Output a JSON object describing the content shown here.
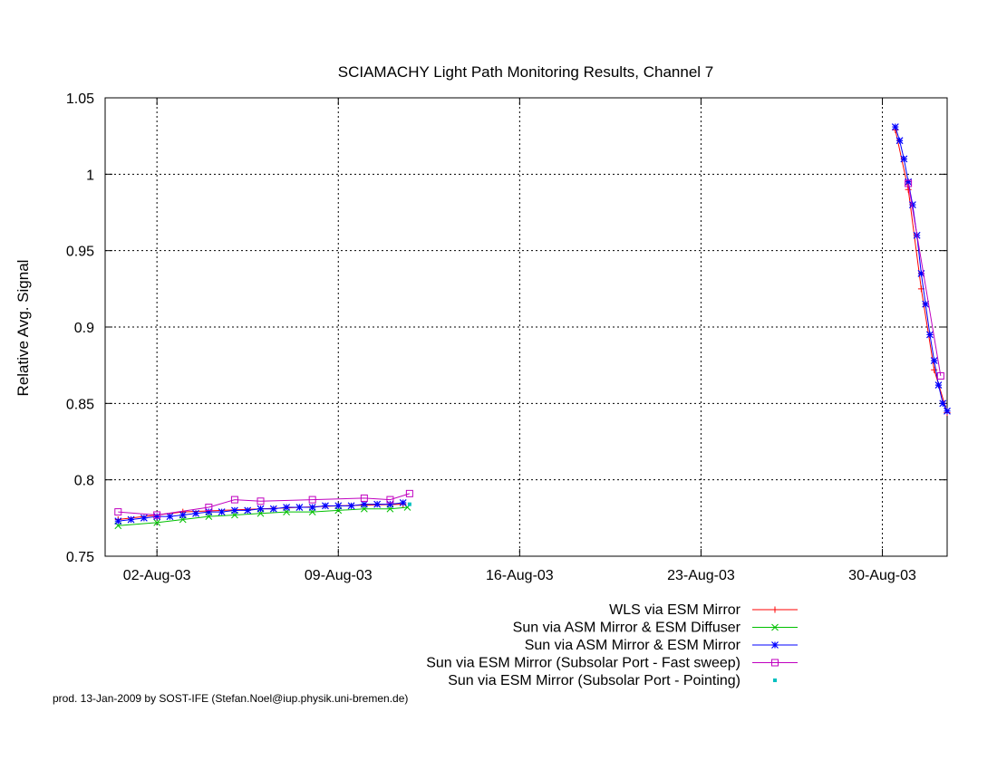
{
  "chart_data": {
    "type": "line",
    "title": "SCIAMACHY Light Path Monitoring Results, Channel 7",
    "xlabel": "",
    "ylabel": "Relative Avg. Signal",
    "xlim": [
      "2003-07-31",
      "2003-09-01T12:00"
    ],
    "ylim": [
      0.75,
      1.05
    ],
    "x_ticks": [
      {
        "date": "2003-08-02",
        "label": "02-Aug-03"
      },
      {
        "date": "2003-08-09",
        "label": "09-Aug-03"
      },
      {
        "date": "2003-08-16",
        "label": "16-Aug-03"
      },
      {
        "date": "2003-08-23",
        "label": "23-Aug-03"
      },
      {
        "date": "2003-08-30",
        "label": "30-Aug-03"
      }
    ],
    "y_ticks": [
      "0.75",
      "0.8",
      "0.85",
      "0.9",
      "0.95",
      "1",
      "1.05"
    ],
    "grid": true,
    "legend_position": "below plot, right aligned",
    "footer": "prod. 13-Jan-2009 by SOST-IFE (Stefan.Noel@iup.physik.uni-bremen.de)",
    "series": [
      {
        "name": "WLS via ESM Mirror",
        "color": "#ff0000",
        "marker": "plus",
        "x": [
          "2003-07-31T12:00",
          "2003-08-03T00:00",
          "2003-08-06T00:00",
          "2003-08-09T00:00",
          "2003-08-11T12:00",
          "2003-08-30T12:00",
          "2003-08-31T00:00",
          "2003-08-31T12:00",
          "2003-09-01T00:00",
          "2003-09-01T12:00"
        ],
        "y": [
          0.774,
          0.779,
          0.781,
          0.783,
          0.784,
          1.029,
          0.99,
          0.925,
          0.872,
          0.844
        ]
      },
      {
        "name": "Sun via ASM Mirror & ESM Diffuser",
        "color": "#00c000",
        "marker": "x",
        "x": [
          "2003-07-31T12:00",
          "2003-08-02T00:00",
          "2003-08-03T00:00",
          "2003-08-04T00:00",
          "2003-08-05T00:00",
          "2003-08-06T00:00",
          "2003-08-07T00:00",
          "2003-08-08T00:00",
          "2003-08-09T00:00",
          "2003-08-10T00:00",
          "2003-08-11T00:00",
          "2003-08-11T16:00"
        ],
        "y": [
          0.77,
          0.772,
          0.774,
          0.776,
          0.777,
          0.778,
          0.779,
          0.779,
          0.78,
          0.781,
          0.781,
          0.782
        ]
      },
      {
        "name": "Sun via ASM Mirror & ESM Mirror",
        "color": "#0000ff",
        "marker": "star",
        "x": [
          "2003-07-31T12:00",
          "2003-08-01T00:00",
          "2003-08-01T12:00",
          "2003-08-02T00:00",
          "2003-08-02T12:00",
          "2003-08-03T00:00",
          "2003-08-03T12:00",
          "2003-08-04T00:00",
          "2003-08-04T12:00",
          "2003-08-05T00:00",
          "2003-08-05T12:00",
          "2003-08-06T00:00",
          "2003-08-06T12:00",
          "2003-08-07T00:00",
          "2003-08-07T12:00",
          "2003-08-08T00:00",
          "2003-08-08T12:00",
          "2003-08-09T00:00",
          "2003-08-09T12:00",
          "2003-08-10T00:00",
          "2003-08-10T12:00",
          "2003-08-11T00:00",
          "2003-08-11T12:00",
          "2003-08-30T12:00",
          "2003-08-30T16:00",
          "2003-08-30T20:00",
          "2003-08-31T00:00",
          "2003-08-31T04:00",
          "2003-08-31T08:00",
          "2003-08-31T12:00",
          "2003-08-31T16:00",
          "2003-08-31T20:00",
          "2003-09-01T00:00",
          "2003-09-01T04:00",
          "2003-09-01T08:00",
          "2003-09-01T12:00"
        ],
        "y": [
          0.773,
          0.774,
          0.775,
          0.776,
          0.776,
          0.777,
          0.778,
          0.779,
          0.779,
          0.78,
          0.78,
          0.781,
          0.781,
          0.782,
          0.782,
          0.782,
          0.783,
          0.783,
          0.783,
          0.784,
          0.784,
          0.784,
          0.785,
          1.031,
          1.022,
          1.01,
          0.995,
          0.98,
          0.96,
          0.935,
          0.915,
          0.895,
          0.878,
          0.862,
          0.85,
          0.845
        ]
      },
      {
        "name": "Sun via ESM Mirror (Subsolar Port - Fast sweep)",
        "color": "#c000c0",
        "marker": "square",
        "x": [
          "2003-07-31T12:00",
          "2003-08-02T00:00",
          "2003-08-04T00:00",
          "2003-08-05T00:00",
          "2003-08-06T00:00",
          "2003-08-08T00:00",
          "2003-08-10T00:00",
          "2003-08-11T00:00",
          "2003-08-11T18:00",
          "2003-08-31T00:00",
          "2003-09-01T06:00"
        ],
        "y": [
          0.779,
          0.777,
          0.782,
          0.787,
          0.786,
          0.787,
          0.788,
          0.787,
          0.791,
          0.994,
          0.868
        ]
      },
      {
        "name": "Sun via ESM Mirror (Subsolar Port - Pointing)",
        "color": "#00c0c0",
        "marker": "dot",
        "x": [
          "2003-08-11T18:00"
        ],
        "y": [
          0.784
        ]
      }
    ]
  }
}
